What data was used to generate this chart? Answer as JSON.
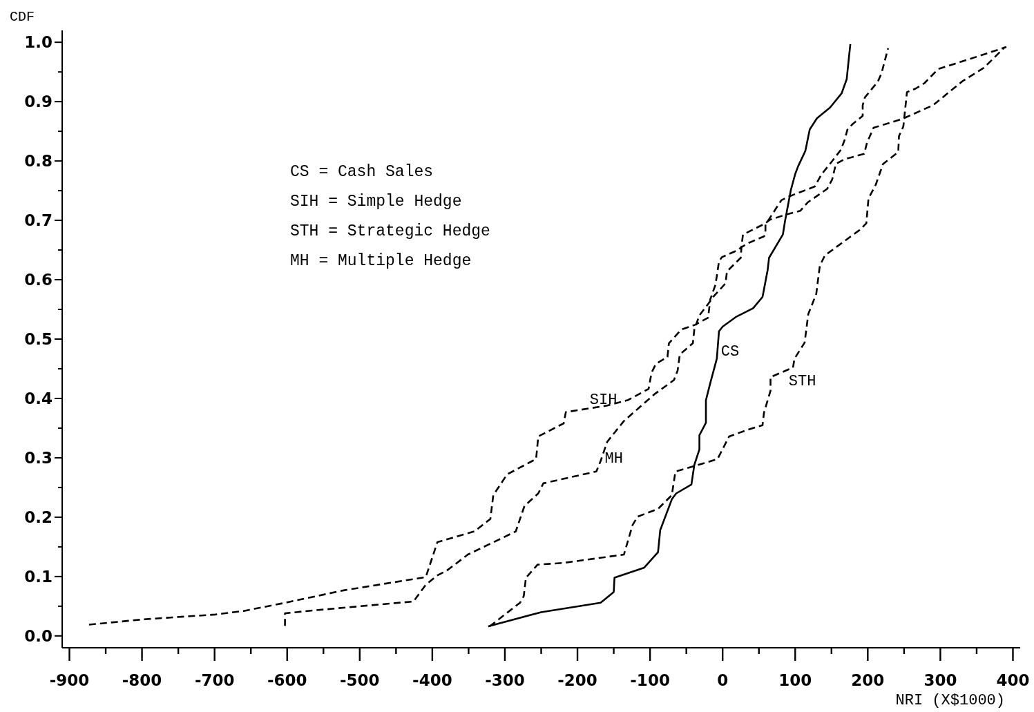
{
  "chart_data": {
    "type": "line",
    "xlabel": "NRI (X$1000)",
    "ylabel": "CDF",
    "annotations": [
      "CS = Cash Sales",
      "SIH = Simple Hedge",
      "STH = Strategic Hedge",
      "MH = Multiple Hedge"
    ],
    "xlim": [
      -910,
      410
    ],
    "ylim": [
      -0.02,
      1.02
    ],
    "xticks": [
      -900,
      {
        "value": -850,
        "label": null
      },
      -800,
      {
        "value": -750,
        "label": null
      },
      -700,
      {
        "value": -650,
        "label": null
      },
      -600,
      {
        "value": -550,
        "label": null
      },
      -500,
      {
        "value": -450,
        "label": null
      },
      -400,
      {
        "value": -350,
        "label": null
      },
      -300,
      {
        "value": -250,
        "label": null
      },
      -200,
      {
        "value": -150,
        "label": null
      },
      -100,
      {
        "value": -50,
        "label": null
      },
      0,
      {
        "value": 50,
        "label": null
      },
      100,
      {
        "value": 150,
        "label": null
      },
      200,
      {
        "value": 250,
        "label": null
      },
      300,
      {
        "value": 350,
        "label": null
      },
      400
    ],
    "yticks": [
      {
        "value": 0,
        "label": "0.0"
      },
      {
        "value": 0.05,
        "label": null
      },
      0.1,
      {
        "value": 0.15,
        "label": null
      },
      0.2,
      {
        "value": 0.25,
        "label": null
      },
      0.3,
      {
        "value": 0.35,
        "label": null
      },
      0.4,
      {
        "value": 0.45,
        "label": null
      },
      0.5,
      {
        "value": 0.55,
        "label": null
      },
      0.6,
      {
        "value": 0.65,
        "label": null
      },
      0.7,
      {
        "value": 0.75,
        "label": null
      },
      0.8,
      {
        "value": 0.85,
        "label": null
      },
      0.9,
      {
        "value": 0.95,
        "label": null
      },
      {
        "value": 1,
        "label": "1.0"
      }
    ],
    "series": [
      {
        "name": "CS",
        "color": "#000000",
        "line_style": "solid",
        "x": [
          -323,
          -250,
          -168,
          -150,
          -149,
          -108,
          -89,
          -86,
          -70,
          -64,
          -43,
          -39,
          -32,
          -32,
          -23,
          -23,
          -17,
          -8,
          -5,
          0,
          18,
          42,
          55,
          62,
          64,
          83,
          86,
          94,
          100,
          104,
          114,
          120,
          130,
          148,
          164,
          171,
          174,
          176
        ],
        "values": [
          0.016,
          0.04,
          0.056,
          0.074,
          0.098,
          0.115,
          0.141,
          0.178,
          0.23,
          0.24,
          0.255,
          0.288,
          0.314,
          0.338,
          0.359,
          0.397,
          0.426,
          0.467,
          0.513,
          0.521,
          0.537,
          0.552,
          0.571,
          0.616,
          0.637,
          0.676,
          0.699,
          0.751,
          0.778,
          0.791,
          0.817,
          0.853,
          0.872,
          0.89,
          0.914,
          0.938,
          0.974,
          0.997
        ]
      },
      {
        "name": "SIH",
        "color": "#000000",
        "line_style": "dashed",
        "x": [
          -873,
          -797,
          -699,
          -660,
          -606,
          -521,
          -409,
          -393,
          -342,
          -320,
          -316,
          -297,
          -257,
          -254,
          -219,
          -216,
          -159,
          -131,
          -102,
          -98,
          -92,
          -76,
          -74,
          -57,
          -38,
          -20,
          -17,
          -10,
          -8,
          -5,
          -1,
          21,
          26,
          36,
          57,
          59,
          59,
          64,
          81,
          91,
          127,
          136,
          153,
          163,
          168,
          172,
          179,
          193,
          193,
          196,
          214,
          219,
          228
        ],
        "values": [
          0.019,
          0.028,
          0.036,
          0.042,
          0.055,
          0.077,
          0.099,
          0.158,
          0.176,
          0.197,
          0.237,
          0.272,
          0.298,
          0.336,
          0.358,
          0.377,
          0.388,
          0.397,
          0.416,
          0.443,
          0.458,
          0.47,
          0.493,
          0.516,
          0.524,
          0.536,
          0.567,
          0.591,
          0.606,
          0.631,
          0.638,
          0.65,
          0.655,
          0.662,
          0.673,
          0.676,
          0.693,
          0.702,
          0.734,
          0.74,
          0.757,
          0.777,
          0.803,
          0.819,
          0.835,
          0.853,
          0.862,
          0.876,
          0.894,
          0.907,
          0.934,
          0.948,
          0.99
        ]
      },
      {
        "name": "MH",
        "color": "#000000",
        "line_style": "dashed",
        "x": [
          -603,
          -603,
          -572,
          -426,
          -409,
          -393,
          -380,
          -351,
          -285,
          -273,
          -254,
          -247,
          -174,
          -168,
          -159,
          -136,
          -93,
          -67,
          -62,
          -59,
          -41,
          -39,
          -32,
          -20,
          -13,
          -4,
          4,
          6,
          25,
          26,
          28,
          33,
          59,
          65,
          88,
          107,
          117,
          144,
          151,
          156,
          168,
          195,
          199,
          208,
          248,
          290,
          330,
          360,
          389
        ],
        "values": [
          0.017,
          0.038,
          0.042,
          0.058,
          0.086,
          0.102,
          0.11,
          0.137,
          0.176,
          0.219,
          0.24,
          0.257,
          0.277,
          0.295,
          0.327,
          0.362,
          0.408,
          0.431,
          0.447,
          0.474,
          0.493,
          0.516,
          0.54,
          0.559,
          0.571,
          0.583,
          0.594,
          0.614,
          0.637,
          0.656,
          0.676,
          0.679,
          0.695,
          0.701,
          0.71,
          0.716,
          0.73,
          0.753,
          0.769,
          0.795,
          0.803,
          0.812,
          0.831,
          0.856,
          0.871,
          0.894,
          0.934,
          0.957,
          0.992
        ]
      },
      {
        "name": "STH",
        "color": "#000000",
        "line_style": "dashed",
        "x": [
          -321,
          -279,
          -274,
          -271,
          -255,
          -219,
          -136,
          -124,
          -117,
          -89,
          -70,
          -65,
          -39,
          -7,
          9,
          34,
          55,
          57,
          66,
          66,
          97,
          99,
          113,
          118,
          129,
          134,
          141,
          189,
          198,
          201,
          211,
          221,
          242,
          243,
          249,
          254,
          266,
          278,
          297,
          336,
          391
        ],
        "values": [
          0.016,
          0.056,
          0.067,
          0.098,
          0.12,
          0.123,
          0.137,
          0.187,
          0.201,
          0.214,
          0.237,
          0.277,
          0.286,
          0.298,
          0.336,
          0.347,
          0.355,
          0.376,
          0.413,
          0.436,
          0.452,
          0.467,
          0.494,
          0.542,
          0.576,
          0.624,
          0.641,
          0.684,
          0.695,
          0.737,
          0.76,
          0.795,
          0.815,
          0.842,
          0.858,
          0.916,
          0.922,
          0.931,
          0.955,
          0.97,
          0.992
        ]
      }
    ]
  }
}
